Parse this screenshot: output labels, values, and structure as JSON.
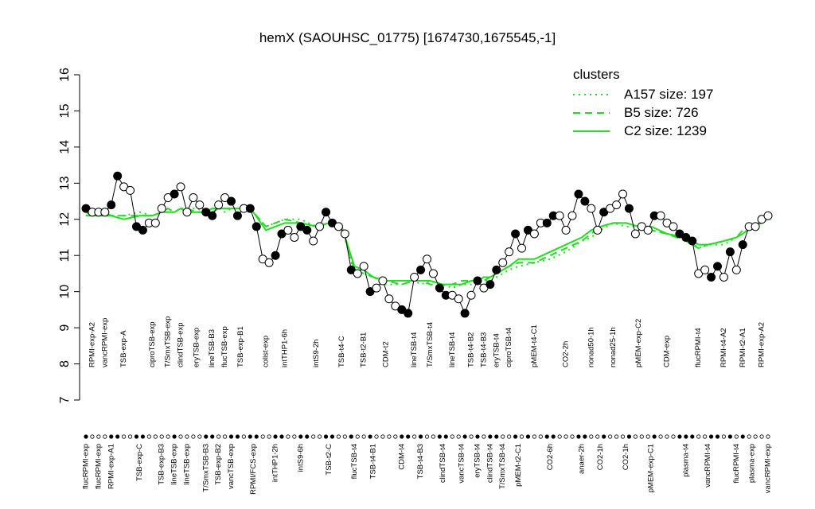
{
  "chart_data": {
    "type": "scatter",
    "title": "hemX (SAOUHSC_01775) [1674730,1675545,-1]",
    "ylim": [
      7,
      16
    ],
    "yticks": [
      7,
      8,
      9,
      10,
      11,
      12,
      13,
      14,
      15,
      16
    ],
    "legend_title": "clusters",
    "legend_position": "top-right",
    "groups": [
      {
        "label": "flucRPMI-exp",
        "values": [
          12.3
        ],
        "filled": [
          true
        ]
      },
      {
        "label": "RPMI-exp-A2",
        "values": [
          12.2
        ],
        "filled": [
          false
        ]
      },
      {
        "label": "flucRPMI-exp",
        "values": [
          12.2
        ],
        "filled": [
          false
        ]
      },
      {
        "label": "vancRPMI-exp",
        "values": [
          12.2
        ],
        "filled": [
          false
        ]
      },
      {
        "label": "RPMI-exp-A1",
        "values": [
          12.4
        ],
        "filled": [
          true
        ]
      },
      {
        "label": "TSB-exp-A",
        "values": [
          13.2,
          12.9,
          12.8
        ],
        "filled": [
          true,
          false,
          false
        ]
      },
      {
        "label": "TSB-exp-C",
        "values": [
          11.8,
          11.7
        ],
        "filled": [
          true,
          true
        ]
      },
      {
        "label": "ciproTSB-exp",
        "values": [
          11.9,
          11.9
        ],
        "filled": [
          false,
          false
        ]
      },
      {
        "label": "TSB-exp-B3",
        "values": [
          12.3
        ],
        "filled": [
          false
        ]
      },
      {
        "label": "T/SmxTSB-exp",
        "values": [
          12.6
        ],
        "filled": [
          false
        ]
      },
      {
        "label": "lineTSB-exp",
        "values": [
          12.7
        ],
        "filled": [
          true
        ]
      },
      {
        "label": "clindTSB-exp",
        "values": [
          12.9
        ],
        "filled": [
          false
        ]
      },
      {
        "label": "lineTSB-exp",
        "values": [
          12.2
        ],
        "filled": [
          false
        ]
      },
      {
        "label": "eryTSB-exp",
        "values": [
          12.6,
          12.4
        ],
        "filled": [
          false,
          false
        ]
      },
      {
        "label": "T/SmxTSB-B3",
        "values": [
          12.2
        ],
        "filled": [
          true
        ]
      },
      {
        "label": "lineTSB-B3",
        "values": [
          12.1
        ],
        "filled": [
          true
        ]
      },
      {
        "label": "TSB-exp-B2",
        "values": [
          12.4
        ],
        "filled": [
          false
        ]
      },
      {
        "label": "flucTSB-exp",
        "values": [
          12.6
        ],
        "filled": [
          false
        ]
      },
      {
        "label": "vancTSB-exp",
        "values": [
          12.5
        ],
        "filled": [
          true
        ]
      },
      {
        "label": "TSB-exp-B1",
        "values": [
          12.1,
          12.3
        ],
        "filled": [
          true,
          false
        ]
      },
      {
        "label": "RPMI/FCS-exp",
        "values": [
          12.3,
          11.8
        ],
        "filled": [
          true,
          true
        ]
      },
      {
        "label": "colist-exp",
        "values": [
          10.9,
          10.8
        ],
        "filled": [
          false,
          false
        ]
      },
      {
        "label": "intTHP1-2h",
        "values": [
          11.0
        ],
        "filled": [
          true
        ]
      },
      {
        "label": "intTHP1-6h",
        "values": [
          11.6,
          11.7
        ],
        "filled": [
          true,
          false
        ]
      },
      {
        "label": "intS9-6h",
        "values": [
          11.5,
          11.8,
          11.7
        ],
        "filled": [
          false,
          true,
          true
        ]
      },
      {
        "label": "intS9-2h",
        "values": [
          11.4,
          11.8
        ],
        "filled": [
          false,
          false
        ]
      },
      {
        "label": "TSB-t2-C",
        "values": [
          12.2,
          11.9
        ],
        "filled": [
          true,
          true
        ]
      },
      {
        "label": "TSB-t4-C",
        "values": [
          11.8,
          11.6
        ],
        "filled": [
          false,
          false
        ]
      },
      {
        "label": "flucTSB-t4",
        "values": [
          10.6,
          10.5
        ],
        "filled": [
          true,
          false
        ]
      },
      {
        "label": "TSB-t2-B1",
        "values": [
          10.7
        ],
        "filled": [
          false
        ]
      },
      {
        "label": "TSB-t4-B1",
        "values": [
          10.0,
          10.1
        ],
        "filled": [
          true,
          false
        ]
      },
      {
        "label": "CDM-t2",
        "values": [
          10.3,
          9.8
        ],
        "filled": [
          false,
          false
        ]
      },
      {
        "label": "CDM-t4",
        "values": [
          9.6,
          9.5,
          9.4
        ],
        "filled": [
          false,
          true,
          true
        ]
      },
      {
        "label": "lineTSB-t4",
        "values": [
          10.4
        ],
        "filled": [
          false
        ]
      },
      {
        "label": "TSB-t4-B3",
        "values": [
          10.6
        ],
        "filled": [
          true
        ]
      },
      {
        "label": "T/SmxTSB-t4",
        "values": [
          10.9,
          10.5
        ],
        "filled": [
          false,
          false
        ]
      },
      {
        "label": "clindTSB-t4",
        "values": [
          10.1,
          9.9
        ],
        "filled": [
          true,
          true
        ]
      },
      {
        "label": "lineTSB-t4",
        "values": [
          9.9
        ],
        "filled": [
          false
        ]
      },
      {
        "label": "vancTSB-t4",
        "values": [
          9.8,
          9.4
        ],
        "filled": [
          false,
          true
        ]
      },
      {
        "label": "TSB-t4-B2",
        "values": [
          9.9
        ],
        "filled": [
          false
        ]
      },
      {
        "label": "eryTSB-t4",
        "values": [
          10.3
        ],
        "filled": [
          true
        ]
      },
      {
        "label": "TSB-t4-B3",
        "values": [
          10.1
        ],
        "filled": [
          false
        ]
      },
      {
        "label": "clindTSB-t4",
        "values": [
          10.2
        ],
        "filled": [
          true
        ]
      },
      {
        "label": "eryTSB-t4",
        "values": [
          10.6
        ],
        "filled": [
          true
        ]
      },
      {
        "label": "T/SmxTSB-t4",
        "values": [
          10.8
        ],
        "filled": [
          false
        ]
      },
      {
        "label": "ciproTSB-t4",
        "values": [
          11.1
        ],
        "filled": [
          false
        ]
      },
      {
        "label": "pMEM-t2-C1",
        "values": [
          11.6,
          11.2
        ],
        "filled": [
          true,
          false
        ]
      },
      {
        "label": "pMEM-t4-C1",
        "values": [
          11.7,
          11.6,
          11.9
        ],
        "filled": [
          true,
          false,
          false
        ]
      },
      {
        "label": "CO2-6h",
        "values": [
          11.9,
          12.1
        ],
        "filled": [
          true,
          true
        ]
      },
      {
        "label": "CO2-2h",
        "values": [
          12.1,
          11.7,
          12.1
        ],
        "filled": [
          false,
          false,
          false
        ]
      },
      {
        "label": "anaer-2h",
        "values": [
          12.7,
          12.5
        ],
        "filled": [
          true,
          true
        ]
      },
      {
        "label": "nonad50-1h",
        "values": [
          12.3
        ],
        "filled": [
          false
        ]
      },
      {
        "label": "CO2-1h",
        "values": [
          11.7,
          12.2
        ],
        "filled": [
          false,
          true
        ]
      },
      {
        "label": "nonad25-1h",
        "values": [
          12.3,
          12.4
        ],
        "filled": [
          false,
          false
        ]
      },
      {
        "label": "CO2-1h",
        "values": [
          12.7,
          12.3
        ],
        "filled": [
          false,
          true
        ]
      },
      {
        "label": "pMEM-exp-C2",
        "values": [
          11.6,
          11.8
        ],
        "filled": [
          false,
          false
        ]
      },
      {
        "label": "pMEM-exp-C1",
        "values": [
          11.7,
          12.1
        ],
        "filled": [
          false,
          true
        ]
      },
      {
        "label": "CDM-exp",
        "values": [
          12.1,
          11.9,
          11.8
        ],
        "filled": [
          false,
          false,
          false
        ]
      },
      {
        "label": "plasma-t4",
        "values": [
          11.6,
          11.5,
          11.4
        ],
        "filled": [
          true,
          true,
          true
        ]
      },
      {
        "label": "flucRPMI-t4",
        "values": [
          10.5
        ],
        "filled": [
          false
        ]
      },
      {
        "label": "vancRPMI-t4",
        "values": [
          10.6,
          10.4
        ],
        "filled": [
          false,
          true
        ]
      },
      {
        "label": "RPMI-t4-A2",
        "values": [
          10.7,
          10.4,
          11.1
        ],
        "filled": [
          true,
          false,
          true
        ]
      },
      {
        "label": "flucRPMI-t4",
        "values": [
          10.6
        ],
        "filled": [
          false
        ]
      },
      {
        "label": "RPMI-t2-A1",
        "values": [
          11.3
        ],
        "filled": [
          true
        ]
      },
      {
        "label": "plasma-exp",
        "values": [
          11.8,
          11.8
        ],
        "filled": [
          false,
          false
        ]
      },
      {
        "label": "RPMI-exp-A2",
        "values": [
          12.0
        ],
        "filled": [
          false
        ]
      },
      {
        "label": "vancRPMI-exp",
        "values": [
          12.1
        ],
        "filled": [
          false
        ]
      }
    ],
    "series": [
      {
        "name": "A157 size: 197",
        "color": "#22dd22",
        "dash": "dotted",
        "values": [
          12.1,
          12.2,
          12.1,
          12.1,
          12.1,
          12.1,
          12.2,
          12.1,
          12.2,
          12.2,
          12.2,
          12.3,
          12.3,
          12.3,
          12.2,
          12.2,
          12.3,
          12.2,
          12.3,
          12.3,
          12.2,
          11.8,
          11.9,
          12.0,
          12.0,
          11.8,
          11.9,
          11.8,
          10.5,
          10.5,
          10.4,
          10.2,
          10.2,
          10.3,
          10.2,
          10.3,
          10.2,
          10.1,
          10.2,
          10.2,
          10.3,
          10.3,
          10.3,
          10.4,
          10.5,
          10.6,
          10.7,
          10.8,
          10.9,
          11.1,
          11.4,
          11.5,
          11.7,
          11.9,
          11.8,
          11.8,
          11.7,
          11.6,
          11.5,
          11.2,
          11.3,
          11.3,
          11.5,
          11.6,
          11.8,
          11.9,
          12.0
        ]
      },
      {
        "name": "B5 size: 726",
        "color": "#22dd22",
        "dash": "dashed",
        "values": [
          12.2,
          12.1,
          12.1,
          12.2,
          12.1,
          12.1,
          12.1,
          12.1,
          12.2,
          12.3,
          12.2,
          12.3,
          12.3,
          12.2,
          12.2,
          12.3,
          12.3,
          12.3,
          12.3,
          12.3,
          12.2,
          11.8,
          11.9,
          12.0,
          11.9,
          11.8,
          11.9,
          11.8,
          10.6,
          10.5,
          10.4,
          10.3,
          10.2,
          10.3,
          10.3,
          10.2,
          10.2,
          10.2,
          10.3,
          10.3,
          10.3,
          10.3,
          10.4,
          10.5,
          10.6,
          10.7,
          10.8,
          10.8,
          11.0,
          11.2,
          11.4,
          11.6,
          11.8,
          11.9,
          11.9,
          11.8,
          11.7,
          11.6,
          11.4,
          11.2,
          11.3,
          11.4,
          11.5,
          11.7,
          11.8,
          11.9,
          12.1
        ]
      },
      {
        "name": "C2 size: 1239",
        "color": "#22dd22",
        "dash": "solid",
        "values": [
          12.1,
          12.1,
          12.1,
          12.1,
          12.1,
          12.0,
          12.1,
          12.1,
          12.2,
          12.2,
          12.2,
          12.3,
          12.2,
          12.2,
          12.2,
          12.2,
          12.3,
          12.3,
          12.3,
          12.3,
          12.2,
          11.7,
          11.8,
          11.9,
          11.9,
          11.8,
          11.9,
          11.8,
          10.7,
          10.6,
          10.4,
          10.3,
          10.3,
          10.3,
          10.3,
          10.3,
          10.2,
          10.2,
          10.2,
          10.3,
          10.3,
          10.4,
          10.4,
          10.5,
          10.6,
          10.7,
          10.9,
          10.9,
          11.1,
          11.3,
          11.5,
          11.7,
          11.8,
          11.9,
          11.9,
          11.8,
          11.8,
          11.6,
          11.5,
          11.3,
          11.3,
          11.4,
          11.5,
          11.6,
          11.8,
          11.9,
          12.1
        ]
      }
    ]
  }
}
